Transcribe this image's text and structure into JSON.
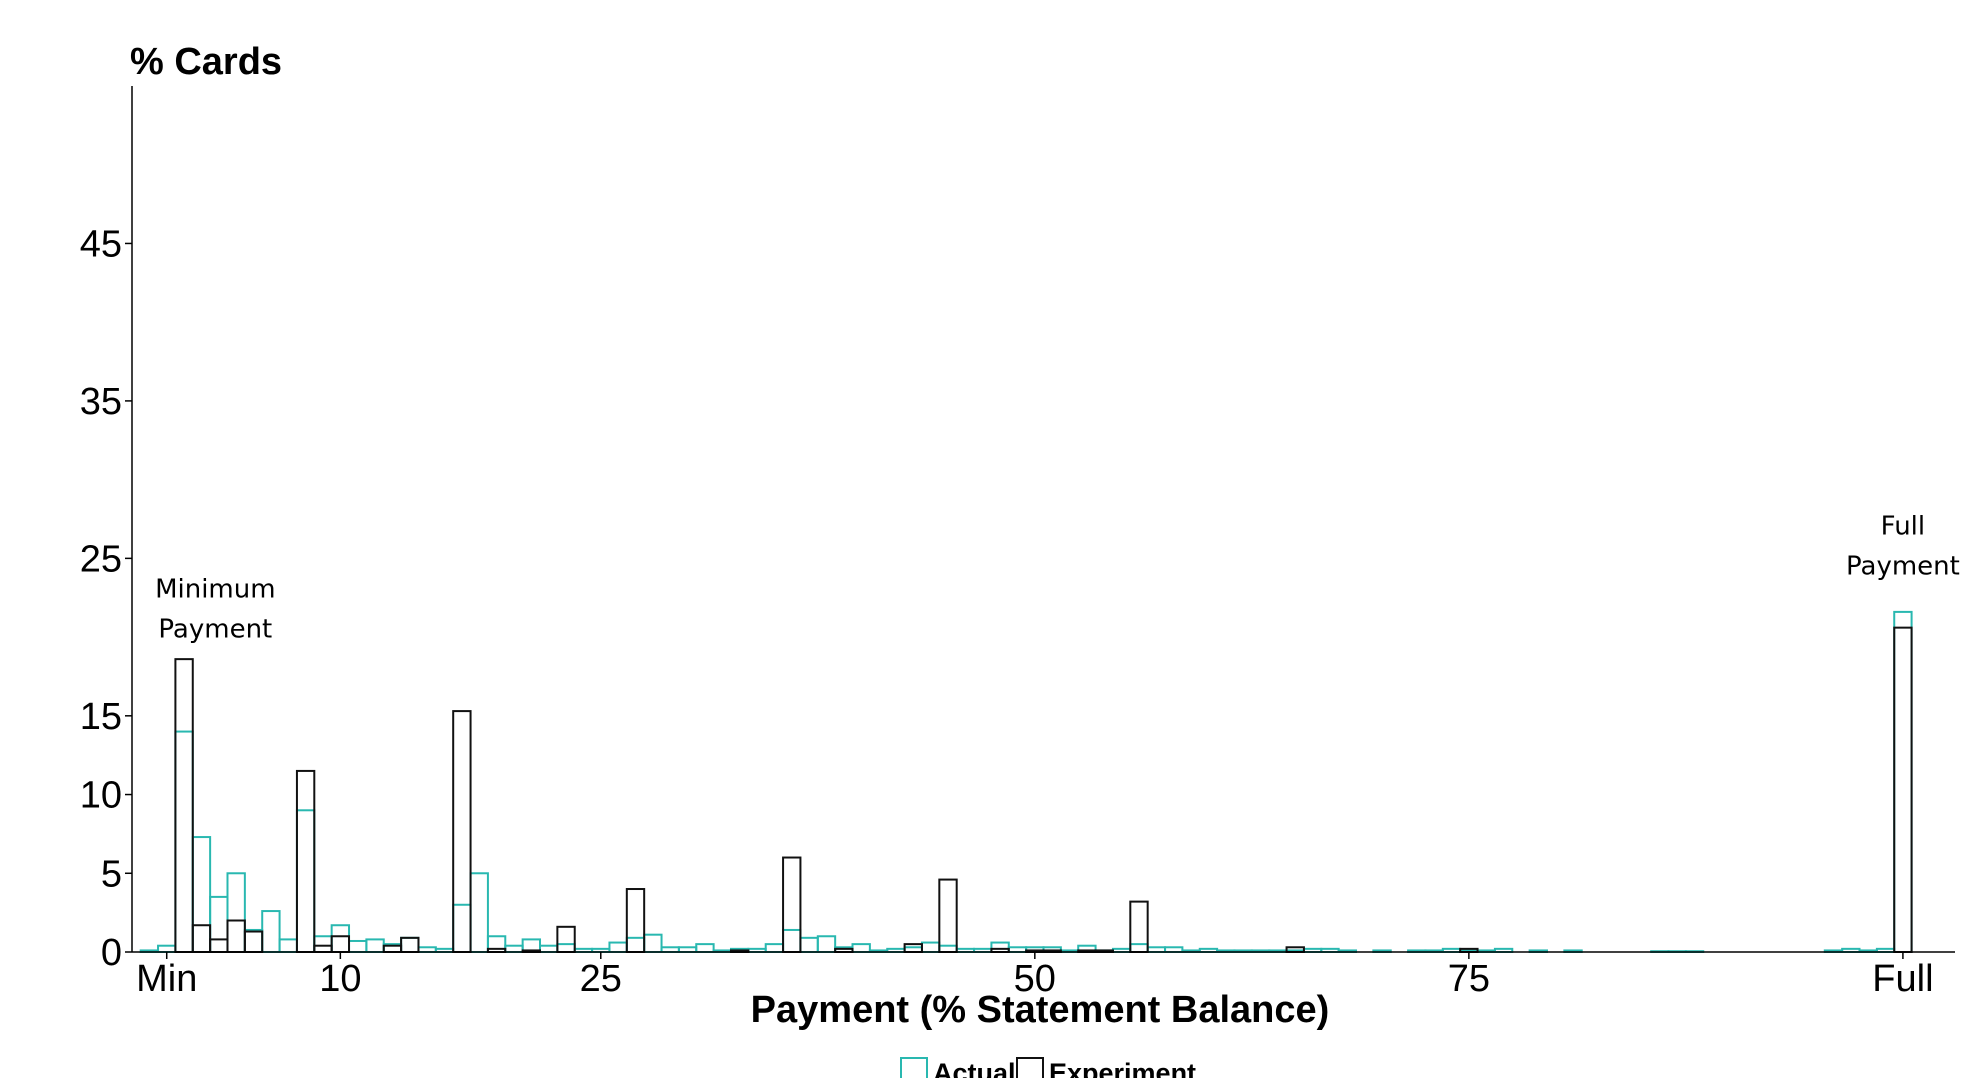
{
  "chart_data": {
    "type": "bar",
    "title": "",
    "ylabel": "% Cards",
    "xlabel": "Payment (% Statement Balance)",
    "x_ticks": [
      {
        "value": 0,
        "label": "Min"
      },
      {
        "value": 10,
        "label": "10"
      },
      {
        "value": 25,
        "label": "25"
      },
      {
        "value": 50,
        "label": "50"
      },
      {
        "value": 75,
        "label": "75"
      },
      {
        "value": 100,
        "label": "Full"
      }
    ],
    "y_ticks": [
      0,
      5,
      10,
      15,
      25,
      35,
      45
    ],
    "xlim": [
      -2,
      103
    ],
    "ylim": [
      0,
      55
    ],
    "grid": false,
    "legend_position": "bottom",
    "annotations": [
      {
        "lines": [
          "Minimum",
          "Payment"
        ],
        "x": 2.8,
        "y": 22.5
      },
      {
        "lines": [
          "Full",
          "Payment"
        ],
        "x": 100,
        "y": 26.5
      }
    ],
    "series": [
      {
        "name": "Actual",
        "color": "#29b8b0",
        "bins": [
          [
            -1,
            0.1
          ],
          [
            0,
            0.4
          ],
          [
            1,
            14.0
          ],
          [
            2,
            7.3
          ],
          [
            3,
            3.5
          ],
          [
            4,
            5.0
          ],
          [
            5,
            1.4
          ],
          [
            6,
            2.6
          ],
          [
            7,
            0.8
          ],
          [
            8,
            9.0
          ],
          [
            9,
            1.0
          ],
          [
            10,
            1.7
          ],
          [
            11,
            0.7
          ],
          [
            12,
            0.8
          ],
          [
            13,
            0.5
          ],
          [
            14,
            0.9
          ],
          [
            15,
            0.3
          ],
          [
            16,
            0.2
          ],
          [
            17,
            3.0
          ],
          [
            18,
            5.0
          ],
          [
            19,
            1.0
          ],
          [
            20,
            0.4
          ],
          [
            21,
            0.8
          ],
          [
            22,
            0.4
          ],
          [
            23,
            0.5
          ],
          [
            24,
            0.2
          ],
          [
            25,
            0.2
          ],
          [
            26,
            0.6
          ],
          [
            27,
            0.9
          ],
          [
            28,
            1.1
          ],
          [
            29,
            0.3
          ],
          [
            30,
            0.3
          ],
          [
            31,
            0.5
          ],
          [
            32,
            0.1
          ],
          [
            33,
            0.2
          ],
          [
            34,
            0.2
          ],
          [
            35,
            0.5
          ],
          [
            36,
            1.4
          ],
          [
            37,
            0.9
          ],
          [
            38,
            1.0
          ],
          [
            39,
            0.3
          ],
          [
            40,
            0.5
          ],
          [
            41,
            0.1
          ],
          [
            42,
            0.2
          ],
          [
            43,
            0.3
          ],
          [
            44,
            0.6
          ],
          [
            45,
            0.4
          ],
          [
            46,
            0.2
          ],
          [
            47,
            0.2
          ],
          [
            48,
            0.6
          ],
          [
            49,
            0.3
          ],
          [
            50,
            0.3
          ],
          [
            51,
            0.3
          ],
          [
            52,
            0.1
          ],
          [
            53,
            0.4
          ],
          [
            54,
            0.1
          ],
          [
            55,
            0.2
          ],
          [
            56,
            0.5
          ],
          [
            57,
            0.3
          ],
          [
            58,
            0.3
          ],
          [
            59,
            0.1
          ],
          [
            60,
            0.2
          ],
          [
            61,
            0.1
          ],
          [
            62,
            0.1
          ],
          [
            63,
            0.1
          ],
          [
            64,
            0.1
          ],
          [
            65,
            0.1
          ],
          [
            66,
            0.2
          ],
          [
            67,
            0.2
          ],
          [
            68,
            0.1
          ],
          [
            70,
            0.1
          ],
          [
            72,
            0.1
          ],
          [
            73,
            0.1
          ],
          [
            74,
            0.2
          ],
          [
            75,
            0.1
          ],
          [
            76,
            0.1
          ],
          [
            77,
            0.2
          ],
          [
            79,
            0.1
          ],
          [
            81,
            0.1
          ],
          [
            86,
            0.05
          ],
          [
            87,
            0.05
          ],
          [
            88,
            0.05
          ],
          [
            96,
            0.1
          ],
          [
            97,
            0.2
          ],
          [
            98,
            0.1
          ],
          [
            99,
            0.2
          ],
          [
            100,
            21.6
          ]
        ]
      },
      {
        "name": "Experiment",
        "color": "#111111",
        "bins": [
          [
            1,
            18.6
          ],
          [
            2,
            1.7
          ],
          [
            3,
            0.8
          ],
          [
            4,
            2.0
          ],
          [
            5,
            1.3
          ],
          [
            8,
            11.5
          ],
          [
            9,
            0.4
          ],
          [
            10,
            1.0
          ],
          [
            13,
            0.4
          ],
          [
            14,
            0.9
          ],
          [
            17,
            15.3
          ],
          [
            19,
            0.2
          ],
          [
            21,
            0.1
          ],
          [
            23,
            1.6
          ],
          [
            27,
            4.0
          ],
          [
            33,
            0.1
          ],
          [
            36,
            6.0
          ],
          [
            39,
            0.2
          ],
          [
            43,
            0.5
          ],
          [
            45,
            4.6
          ],
          [
            48,
            0.2
          ],
          [
            50,
            0.1
          ],
          [
            51,
            0.1
          ],
          [
            53,
            0.1
          ],
          [
            54,
            0.1
          ],
          [
            56,
            3.2
          ],
          [
            65,
            0.3
          ],
          [
            75,
            0.2
          ],
          [
            100,
            20.6
          ]
        ]
      }
    ]
  }
}
